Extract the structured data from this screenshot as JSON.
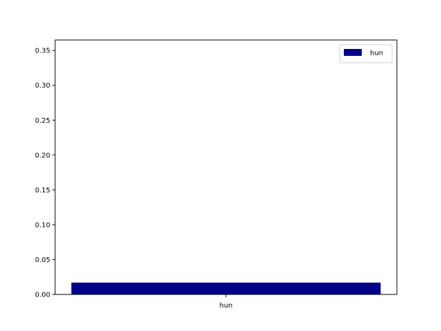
{
  "chart_data": {
    "type": "bar",
    "categories": [
      "hun"
    ],
    "series": [
      {
        "name": "hun",
        "values": [
          0.017
        ],
        "color": "#00008b"
      }
    ],
    "title": "",
    "xlabel": "",
    "ylabel": "",
    "ylim": [
      0,
      0.365
    ],
    "yticks": [
      0.0,
      0.05,
      0.1,
      0.15,
      0.2,
      0.25,
      0.3,
      0.35
    ],
    "ytick_labels": [
      "0.00",
      "0.05",
      "0.10",
      "0.15",
      "0.20",
      "0.25",
      "0.30",
      "0.35"
    ],
    "grid": false,
    "legend": {
      "placement": "top-right",
      "entries": [
        "hun"
      ]
    }
  }
}
